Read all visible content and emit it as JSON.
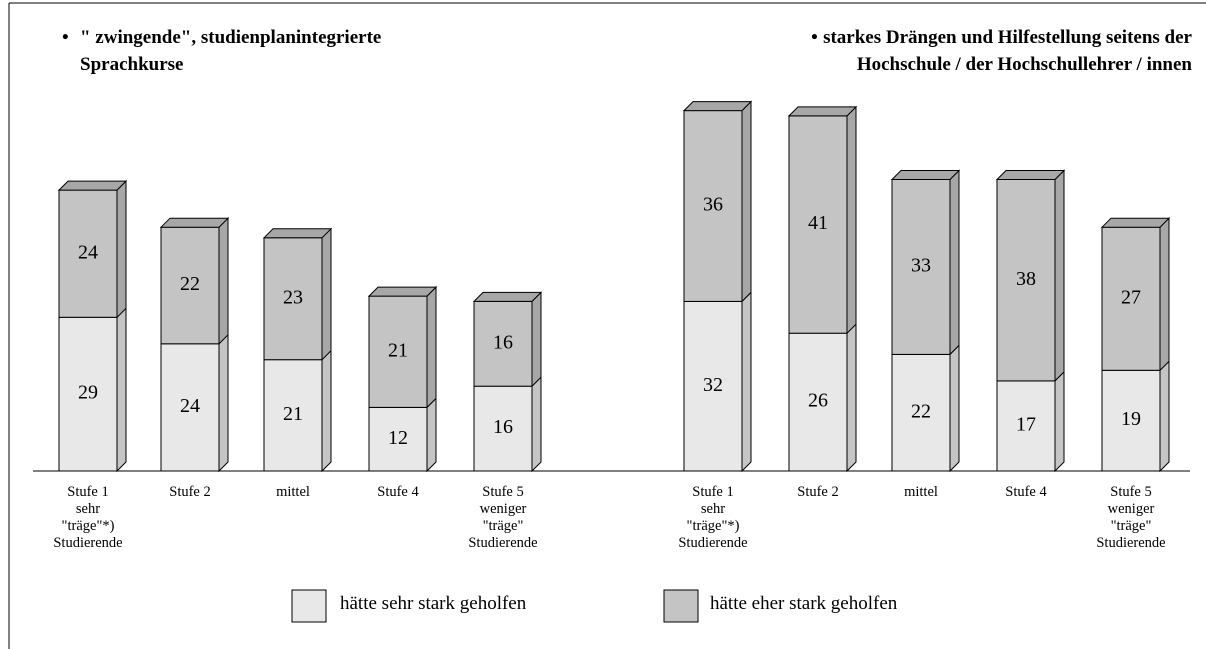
{
  "chart_data": [
    {
      "type": "bar3d-stacked",
      "title": "\" zwingende\", studienplanintegrierte\nSprachkurse",
      "categories": [
        "Stufe 1\nsehr\n\"träge\"*)\nStudierende",
        "Stufe 2",
        "mittel",
        "Stufe 4",
        "Stufe 5\nweniger\n\"träge\"\nStudierende"
      ],
      "series": [
        {
          "name": "hätte sehr stark geholfen",
          "color": "#e8e8e8",
          "values": [
            29,
            24,
            21,
            12,
            16
          ]
        },
        {
          "name": "hätte eher stark geholfen",
          "color": "#c4c4c4",
          "values": [
            24,
            22,
            23,
            21,
            16
          ]
        }
      ]
    },
    {
      "type": "bar3d-stacked",
      "title": "starkes Drängen und Hilfestellung seitens der\nHochschule / der Hochschullehrer / innen",
      "categories": [
        "Stufe 1\nsehr\n\"träge\"*)\nStudierende",
        "Stufe 2",
        "mittel",
        "Stufe 4",
        "Stufe 5\nweniger\n\"träge\"\nStudierende"
      ],
      "series": [
        {
          "color": "#e8e8e8",
          "values": [
            32,
            26,
            22,
            17,
            19
          ]
        },
        {
          "color": "#c4c4c4",
          "values": [
            36,
            41,
            33,
            38,
            27
          ]
        }
      ]
    }
  ]
}
